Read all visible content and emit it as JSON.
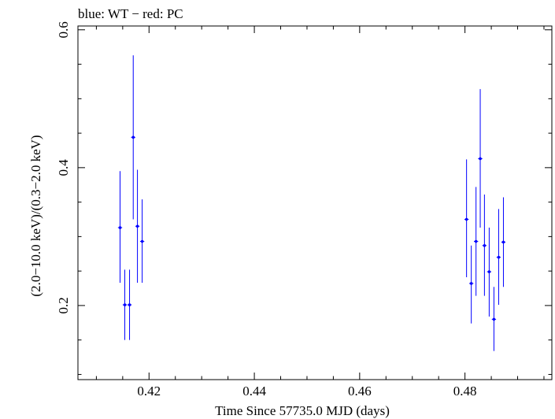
{
  "chart_data": {
    "type": "scatter",
    "title": "blue: WT − red: PC",
    "xlabel": "Time Since 57735.0 MJD (days)",
    "ylabel": "(2.0−10.0 keV)/(0.3−2.0 keV)",
    "xlim": [
      0.4065,
      0.4965
    ],
    "ylim": [
      0.0925,
      0.6055
    ],
    "xticks": [
      0.42,
      0.44,
      0.46,
      0.48
    ],
    "xtick_labels": [
      "0.42",
      "0.44",
      "0.46",
      "0.48"
    ],
    "yticks": [
      0.2,
      0.4,
      0.6
    ],
    "ytick_labels": [
      "0.2",
      "0.4",
      "0.6"
    ],
    "grid": false,
    "series": [
      {
        "color": "#0000ff",
        "points": [
          {
            "x": 0.4145,
            "y": 0.313,
            "xerr": 0.0004,
            "ylo": 0.233,
            "yhi": 0.395
          },
          {
            "x": 0.4154,
            "y": 0.201,
            "xerr": 0.0004,
            "ylo": 0.15,
            "yhi": 0.252
          },
          {
            "x": 0.4163,
            "y": 0.201,
            "xerr": 0.0004,
            "ylo": 0.15,
            "yhi": 0.252
          },
          {
            "x": 0.417,
            "y": 0.444,
            "xerr": 0.0004,
            "ylo": 0.325,
            "yhi": 0.563
          },
          {
            "x": 0.4178,
            "y": 0.315,
            "xerr": 0.0004,
            "ylo": 0.233,
            "yhi": 0.397
          },
          {
            "x": 0.4187,
            "y": 0.293,
            "xerr": 0.0004,
            "ylo": 0.233,
            "yhi": 0.354
          },
          {
            "x": 0.4803,
            "y": 0.325,
            "xerr": 0.0004,
            "ylo": 0.241,
            "yhi": 0.412
          },
          {
            "x": 0.4812,
            "y": 0.232,
            "xerr": 0.0004,
            "ylo": 0.174,
            "yhi": 0.287
          },
          {
            "x": 0.4821,
            "y": 0.293,
            "xerr": 0.0004,
            "ylo": 0.214,
            "yhi": 0.372
          },
          {
            "x": 0.4829,
            "y": 0.413,
            "xerr": 0.0004,
            "ylo": 0.313,
            "yhi": 0.514
          },
          {
            "x": 0.4837,
            "y": 0.287,
            "xerr": 0.0004,
            "ylo": 0.214,
            "yhi": 0.361
          },
          {
            "x": 0.4846,
            "y": 0.249,
            "xerr": 0.0004,
            "ylo": 0.184,
            "yhi": 0.313
          },
          {
            "x": 0.4855,
            "y": 0.18,
            "xerr": 0.0004,
            "ylo": 0.134,
            "yhi": 0.227
          },
          {
            "x": 0.4864,
            "y": 0.27,
            "xerr": 0.0004,
            "ylo": 0.201,
            "yhi": 0.34
          },
          {
            "x": 0.4873,
            "y": 0.292,
            "xerr": 0.0004,
            "ylo": 0.227,
            "yhi": 0.357
          }
        ]
      }
    ]
  }
}
